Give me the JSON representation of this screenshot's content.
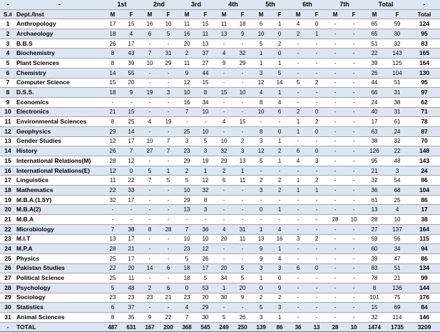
{
  "header": {
    "top": [
      "-",
      "-",
      "1st",
      "2nd",
      "3rd",
      "4th",
      "5th",
      "6th",
      "7th",
      "Total",
      "-"
    ],
    "sub": [
      "S.#",
      "Dept./Inst",
      "M",
      "F",
      "M",
      "F",
      "M",
      "F",
      "M",
      "F",
      "M",
      "F",
      "M",
      "F",
      "M",
      "F",
      "M",
      "F",
      "Total"
    ]
  },
  "rows": [
    [
      "1",
      "Anthropology",
      "17",
      "15",
      "16",
      "10",
      "11",
      "15",
      "11",
      "18",
      "6",
      "1",
      "4",
      "0",
      "-",
      "-",
      "65",
      "59",
      "124"
    ],
    [
      "2",
      "Archaeology",
      "18",
      "4",
      "6",
      "5",
      "16",
      "11",
      "13",
      "9",
      "10",
      "0",
      "2",
      "1",
      "-",
      "-",
      "65",
      "30",
      "95"
    ],
    [
      "3",
      "B.B.S",
      "26",
      "17",
      "-",
      "-",
      "20",
      "13",
      "-",
      "-",
      "5",
      "2",
      "-",
      "-",
      "-",
      "-",
      "51",
      "32",
      "83"
    ],
    [
      "4",
      "Biochemistry",
      "8",
      "43",
      "7",
      "31",
      "2",
      "37",
      "4",
      "32",
      "1",
      "0",
      "-",
      "-",
      "-",
      "-",
      "22",
      "143",
      "165"
    ],
    [
      "5",
      "Plant Sciences",
      "8",
      "39",
      "10",
      "29",
      "11",
      "27",
      "9",
      "29",
      "1",
      "1",
      "-",
      "-",
      "-",
      "-",
      "39",
      "125",
      "164"
    ],
    [
      "6",
      "Chemistry",
      "14",
      "55",
      "-",
      "-",
      "9",
      "44",
      "-",
      "-",
      "3",
      "5",
      "-",
      "-",
      "-",
      "-",
      "26",
      "104",
      "130"
    ],
    [
      "7",
      "Computer Science",
      "15",
      "20",
      "-",
      "-",
      "12",
      "15",
      "-",
      "-",
      "12",
      "14",
      "5",
      "2",
      "-",
      "-",
      "44",
      "51",
      "95"
    ],
    [
      "8",
      "D.S.S.",
      "18",
      "9",
      "19",
      "3",
      "10",
      "8",
      "15",
      "10",
      "4",
      "1",
      "-",
      "-",
      "-",
      "-",
      "66",
      "31",
      "97"
    ],
    [
      "9",
      "Economics",
      "-",
      "-",
      "-",
      "-",
      "16",
      "34",
      "-",
      "-",
      "8",
      "4",
      "-",
      "-",
      "-",
      "-",
      "24",
      "38",
      "62"
    ],
    [
      "10",
      "Electronics",
      "21",
      "15",
      "-",
      "-",
      "7",
      "10",
      "-",
      "-",
      "10",
      "6",
      "2",
      "0",
      "-",
      "-",
      "40",
      "31",
      "71"
    ],
    [
      "11",
      "Environmental Sciences",
      "8",
      "25",
      "4",
      "19",
      "-",
      "-",
      "4",
      "15",
      "-",
      "-",
      "1",
      "2",
      "-",
      "-",
      "17",
      "61",
      "78"
    ],
    [
      "12",
      "Geophysics",
      "29",
      "14",
      "-",
      "-",
      "25",
      "10",
      "-",
      "-",
      "8",
      "0",
      "1",
      "0",
      "-",
      "-",
      "63",
      "24",
      "87"
    ],
    [
      "13",
      "Gender Studies",
      "12",
      "17",
      "10",
      "7",
      "3",
      "5",
      "10",
      "2",
      "3",
      "1",
      "-",
      "-",
      "-",
      "-",
      "38",
      "32",
      "70"
    ],
    [
      "14",
      "History",
      "26",
      "7",
      "27",
      "7",
      "23",
      "3",
      "32",
      "3",
      "12",
      "2",
      "6",
      "0",
      "-",
      "-",
      "126",
      "22",
      "148"
    ],
    [
      "15",
      "International Relations(M)",
      "28",
      "12",
      "-",
      "-",
      "29",
      "19",
      "29",
      "13",
      "5",
      "1",
      "4",
      "3",
      "-",
      "-",
      "95",
      "48",
      "143"
    ],
    [
      "16",
      "International Relations(E)",
      "12",
      "0",
      "5",
      "1",
      "2",
      "1",
      "2",
      "1",
      "-",
      "-",
      "-",
      "-",
      "-",
      "-",
      "21",
      "3",
      "24"
    ],
    [
      "17",
      "Linguistics",
      "11",
      "22",
      "7",
      "5",
      "5",
      "12",
      "6",
      "11",
      "2",
      "2",
      "1",
      "2",
      "-",
      "-",
      "32",
      "54",
      "86"
    ],
    [
      "18",
      "Mathematics",
      "22",
      "33",
      "-",
      "-",
      "10",
      "32",
      "-",
      "-",
      "3",
      "2",
      "1",
      "1",
      "-",
      "-",
      "36",
      "68",
      "104"
    ],
    [
      "19",
      "M.B.A (1.5Y)",
      "32",
      "17",
      "-",
      "-",
      "29",
      "8",
      "-",
      "-",
      "-",
      "-",
      "-",
      "-",
      "-",
      "-",
      "61",
      "25",
      "86"
    ],
    [
      "20",
      "M.B.A(2)",
      "-",
      "-",
      "-",
      "-",
      "13",
      "3",
      "-",
      "-",
      "0",
      "1",
      "-",
      "-",
      "-",
      "-",
      "13",
      "4",
      "17"
    ],
    [
      "21",
      "M.B.A",
      "-",
      "-",
      "-",
      "-",
      "-",
      "-",
      "-",
      "-",
      "-",
      "-",
      "-",
      "-",
      "28",
      "10",
      "28",
      "10",
      "38"
    ],
    [
      "22",
      "Microbiology",
      "7",
      "38",
      "8",
      "28",
      "7",
      "36",
      "4",
      "31",
      "1",
      "4",
      "-",
      "-",
      "-",
      "-",
      "27",
      "137",
      "164"
    ],
    [
      "23",
      "M.I.T",
      "13",
      "17",
      "-",
      "-",
      "10",
      "10",
      "20",
      "11",
      "13",
      "16",
      "3",
      "2",
      "-",
      "-",
      "59",
      "56",
      "115"
    ],
    [
      "24",
      "M.P.A",
      "28",
      "21",
      "-",
      "-",
      "23",
      "12",
      "-",
      "-",
      "9",
      "1",
      "-",
      "-",
      "-",
      "-",
      "60",
      "34",
      "94"
    ],
    [
      "25",
      "Physics",
      "25",
      "17",
      "-",
      "-",
      "5",
      "26",
      "-",
      "-",
      "9",
      "4",
      "-",
      "-",
      "-",
      "-",
      "39",
      "47",
      "86"
    ],
    [
      "26",
      "Pakistan Studies",
      "22",
      "20",
      "14",
      "6",
      "18",
      "17",
      "20",
      "5",
      "3",
      "3",
      "6",
      "0",
      "-",
      "-",
      "83",
      "51",
      "134"
    ],
    [
      "27",
      "Political Science",
      "25",
      "11",
      "-",
      "-",
      "18",
      "5",
      "34",
      "5",
      "1",
      "0",
      "-",
      "-",
      "-",
      "-",
      "78",
      "21",
      "99"
    ],
    [
      "28",
      "Psychology",
      "5",
      "48",
      "2",
      "6",
      "0",
      "53",
      "1",
      "20",
      "0",
      "9",
      "-",
      "-",
      "-",
      "-",
      "8",
      "136",
      "144"
    ],
    [
      "29",
      "Sociology",
      "23",
      "23",
      "23",
      "21",
      "23",
      "20",
      "30",
      "9",
      "2",
      "2",
      "-",
      "-",
      "-",
      "-",
      "101",
      "75",
      "176"
    ],
    [
      "30",
      "Statistics",
      "6",
      "37",
      "-",
      "-",
      "4",
      "29",
      "-",
      "-",
      "5",
      "3",
      "-",
      "-",
      "-",
      "-",
      "15",
      "69",
      "84"
    ],
    [
      "31",
      "Animal Sciences",
      "8",
      "35",
      "9",
      "22",
      "7",
      "30",
      "5",
      "26",
      "3",
      "1",
      "-",
      "-",
      "-",
      "-",
      "32",
      "114",
      "146"
    ]
  ],
  "totals": [
    "-",
    "TOTAL",
    "487",
    "631",
    "167",
    "200",
    "368",
    "545",
    "249",
    "250",
    "139",
    "86",
    "36",
    "13",
    "28",
    "10",
    "1474",
    "1735",
    "3209"
  ]
}
